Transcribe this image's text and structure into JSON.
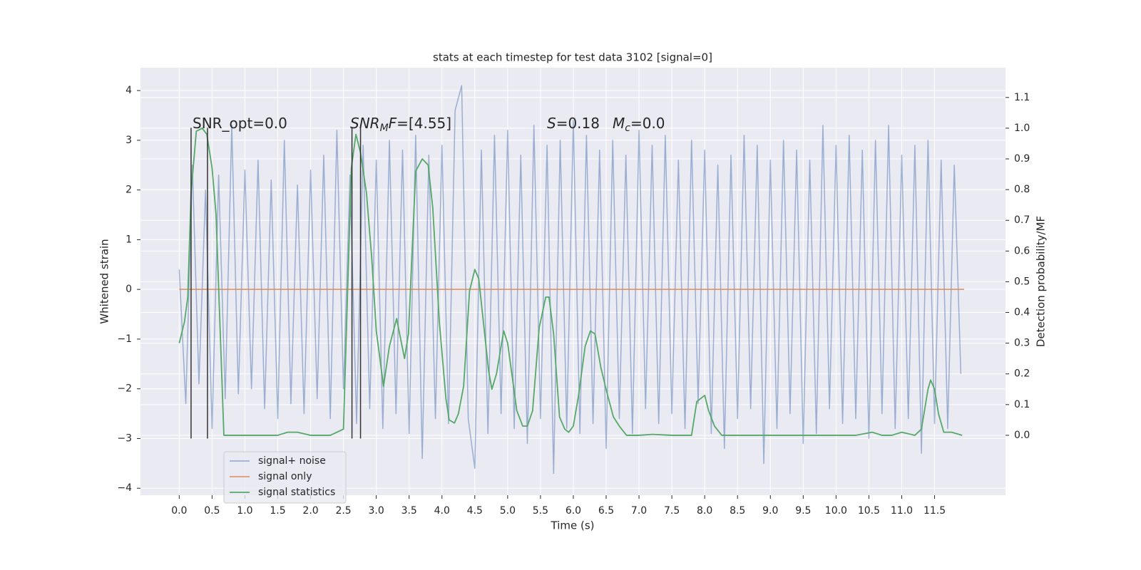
{
  "chart_data": {
    "type": "line",
    "title": "stats at each timestep for test data 3102 [signal=0]",
    "xlabel": "Time (s)",
    "ylabel": "Whitened strain",
    "y2label": "Detection probability/MF",
    "xlim": [
      -0.59,
      12.58
    ],
    "ylim": [
      -4.14,
      4.46
    ],
    "y2lim": [
      -0.195,
      1.197
    ],
    "xticks": [
      {
        "value": 0,
        "label": "0.0"
      },
      0.5,
      {
        "value": 1,
        "label": "1.0"
      },
      1.5,
      {
        "value": 2,
        "label": "2.0"
      },
      2.5,
      {
        "value": 3,
        "label": "3.0"
      },
      3.5,
      {
        "value": 4,
        "label": "4.0"
      },
      4.5,
      {
        "value": 5,
        "label": "5.0"
      },
      5.5,
      {
        "value": 6,
        "label": "6.0"
      },
      6.5,
      {
        "value": 7,
        "label": "7.0"
      },
      7.5,
      {
        "value": 8,
        "label": "8.0"
      },
      8.5,
      {
        "value": 9,
        "label": "9.0"
      },
      9.5,
      {
        "value": 10,
        "label": "10.0"
      },
      10.5,
      {
        "value": 11,
        "label": "11.0"
      },
      11.5
    ],
    "yticks": [
      {
        "value": -4,
        "label": "−4"
      },
      {
        "value": -3,
        "label": "−3"
      },
      {
        "value": -2,
        "label": "−2"
      },
      {
        "value": -1,
        "label": "−1"
      },
      0,
      1,
      2,
      3,
      4
    ],
    "y2ticks": [
      {
        "value": 0,
        "label": "0.0"
      },
      0.1,
      0.2,
      0.3,
      0.4,
      0.5,
      0.6,
      0.7,
      0.8,
      0.9,
      {
        "value": 1,
        "label": "1.0"
      },
      1.1
    ],
    "grid": true,
    "legend_loc": "lower left",
    "series": [
      {
        "name": "signal+ noise",
        "color": "#4c72b0",
        "alpha": 0.5,
        "x": [
          0,
          0.1,
          0.2,
          0.3,
          0.4,
          0.5,
          0.6,
          0.7,
          0.8,
          0.9,
          1,
          1.1,
          1.2,
          1.3,
          1.4,
          1.5,
          1.6,
          1.7,
          1.8,
          1.9,
          2,
          2.1,
          2.2,
          2.3,
          2.4,
          2.5,
          2.6,
          2.7,
          2.8,
          2.9,
          3,
          3.1,
          3.2,
          3.3,
          3.4,
          3.5,
          3.6,
          3.7,
          3.8,
          3.9,
          4,
          4.1,
          4.2,
          4.3,
          4.4,
          4.5,
          4.6,
          4.7,
          4.8,
          4.9,
          5,
          5.1,
          5.2,
          5.3,
          5.4,
          5.5,
          5.6,
          5.7,
          5.8,
          5.9,
          6,
          6.1,
          6.2,
          6.3,
          6.4,
          6.5,
          6.6,
          6.7,
          6.8,
          6.9,
          7,
          7.1,
          7.2,
          7.3,
          7.4,
          7.5,
          7.6,
          7.7,
          7.8,
          7.9,
          8,
          8.1,
          8.2,
          8.3,
          8.4,
          8.5,
          8.6,
          8.7,
          8.8,
          8.9,
          9,
          9.1,
          9.2,
          9.3,
          9.4,
          9.5,
          9.6,
          9.7,
          9.8,
          9.9,
          10,
          10.1,
          10.2,
          10.3,
          10.4,
          10.5,
          10.6,
          10.7,
          10.8,
          10.9,
          11,
          11.1,
          11.2,
          11.3,
          11.4,
          11.5,
          11.6,
          11.7,
          11.8,
          11.9
        ],
        "values": [
          0.4,
          -2.3,
          2.5,
          -1.9,
          2.0,
          -2.8,
          2.3,
          -2.2,
          3.3,
          -2.1,
          2.4,
          -2.0,
          2.6,
          -2.4,
          2.2,
          -2.6,
          3.0,
          -2.3,
          2.1,
          -2.5,
          2.4,
          -2.2,
          2.7,
          -2.6,
          3.2,
          -2.0,
          2.3,
          -2.7,
          2.9,
          -2.4,
          2.6,
          -2.8,
          3.0,
          -2.5,
          2.8,
          -2.9,
          3.1,
          -3.4,
          2.7,
          -2.6,
          2.9,
          -2.7,
          3.6,
          4.1,
          -2.6,
          -3.6,
          2.8,
          -2.9,
          3.1,
          -2.5,
          3.2,
          -2.8,
          2.7,
          -3.1,
          3.3,
          -2.6,
          2.9,
          -3.7,
          3.0,
          -2.8,
          3.4,
          -2.9,
          3.1,
          -2.7,
          2.8,
          -3.2,
          3.0,
          -2.6,
          2.7,
          -2.9,
          3.2,
          -2.4,
          2.9,
          -2.7,
          3.1,
          -2.5,
          2.6,
          -2.8,
          3.0,
          -2.3,
          2.8,
          -2.9,
          2.5,
          -3.2,
          2.7,
          -2.6,
          3.1,
          -2.4,
          2.9,
          -3.5,
          2.6,
          -2.8,
          3.0,
          -2.5,
          2.8,
          -3.1,
          2.6,
          -2.9,
          3.3,
          -2.4,
          2.9,
          -2.7,
          3.1,
          -2.6,
          2.8,
          -3.0,
          3.0,
          -2.5,
          3.3,
          -2.8,
          2.7,
          -2.6,
          2.9,
          -3.3,
          3.0,
          -2.7,
          2.6,
          -2.8,
          2.5,
          -1.7
        ]
      },
      {
        "name": "signal only",
        "color": "#dd8452",
        "alpha": 0.8,
        "x": [
          0,
          11.95
        ],
        "values": [
          0,
          0
        ]
      },
      {
        "name": "signal statistics",
        "color": "#55a868",
        "alpha": 1,
        "axis": "y2",
        "x": [
          0,
          0.08,
          0.13,
          0.18,
          0.26,
          0.35,
          0.42,
          0.5,
          0.56,
          0.63,
          0.68,
          1.0,
          1.5,
          1.65,
          1.8,
          2.0,
          2.3,
          2.5,
          2.62,
          2.69,
          2.76,
          2.85,
          2.93,
          3.0,
          3.11,
          3.2,
          3.31,
          3.43,
          3.49,
          3.6,
          3.7,
          3.79,
          3.86,
          3.96,
          4.06,
          4.11,
          4.19,
          4.25,
          4.33,
          4.42,
          4.5,
          4.56,
          4.64,
          4.71,
          4.76,
          4.83,
          4.94,
          5.0,
          5.07,
          5.14,
          5.23,
          5.3,
          5.38,
          5.48,
          5.58,
          5.63,
          5.7,
          5.79,
          5.87,
          5.93,
          6.0,
          6.08,
          6.18,
          6.26,
          6.33,
          6.42,
          6.51,
          6.61,
          6.7,
          6.81,
          7.0,
          7.2,
          7.5,
          7.8,
          7.88,
          8.0,
          8.06,
          8.15,
          8.26,
          8.5,
          9.0,
          9.5,
          10.0,
          10.3,
          10.55,
          10.7,
          10.85,
          11.0,
          11.1,
          11.2,
          11.3,
          11.4,
          11.44,
          11.5,
          11.56,
          11.64,
          11.76,
          11.92
        ],
        "values": [
          0.3,
          0.37,
          0.45,
          0.79,
          0.99,
          1.0,
          0.98,
          0.87,
          0.72,
          0.3,
          0.0,
          0.0,
          0.0,
          0.01,
          0.01,
          0.0,
          0.0,
          0.02,
          0.87,
          0.98,
          0.92,
          0.79,
          0.58,
          0.34,
          0.16,
          0.29,
          0.38,
          0.25,
          0.33,
          0.86,
          0.9,
          0.88,
          0.74,
          0.37,
          0.12,
          0.05,
          0.04,
          0.07,
          0.16,
          0.47,
          0.54,
          0.51,
          0.35,
          0.21,
          0.15,
          0.2,
          0.34,
          0.3,
          0.19,
          0.08,
          0.03,
          0.03,
          0.08,
          0.35,
          0.45,
          0.45,
          0.33,
          0.06,
          0.02,
          0.01,
          0.03,
          0.13,
          0.29,
          0.34,
          0.33,
          0.22,
          0.14,
          0.06,
          0.03,
          0.0,
          0.0,
          0.003,
          0.0,
          0.0,
          0.11,
          0.13,
          0.08,
          0.03,
          0.0,
          0.0,
          0.0,
          0.0,
          0.0,
          0.0,
          0.01,
          0.0,
          0.0,
          0.01,
          0.005,
          0.0,
          0.02,
          0.15,
          0.18,
          0.15,
          0.07,
          0.01,
          0.01,
          0.0
        ]
      }
    ],
    "vlines": {
      "x": [
        0.18,
        0.43,
        2.63,
        2.76
      ],
      "ymin": -3,
      "ymax": 3.25,
      "color": "#333333"
    },
    "annotations": [
      {
        "segments": [
          {
            "text": "SNR_opt=0.0"
          }
        ]
      },
      {
        "segments": [
          {
            "text": "SNR",
            "italic": true
          },
          {
            "text": "M",
            "italic": true,
            "sub": true
          },
          {
            "text": "F",
            "italic": true
          },
          {
            "text": "=[4.55]"
          }
        ]
      },
      {
        "segments": [
          {
            "text": "S",
            "italic": true
          },
          {
            "text": "=0.18"
          }
        ]
      },
      {
        "segments": [
          {
            "text": "M",
            "italic": true
          },
          {
            "text": "c",
            "italic": true,
            "sub": true
          },
          {
            "text": "=0.0"
          }
        ]
      }
    ]
  }
}
